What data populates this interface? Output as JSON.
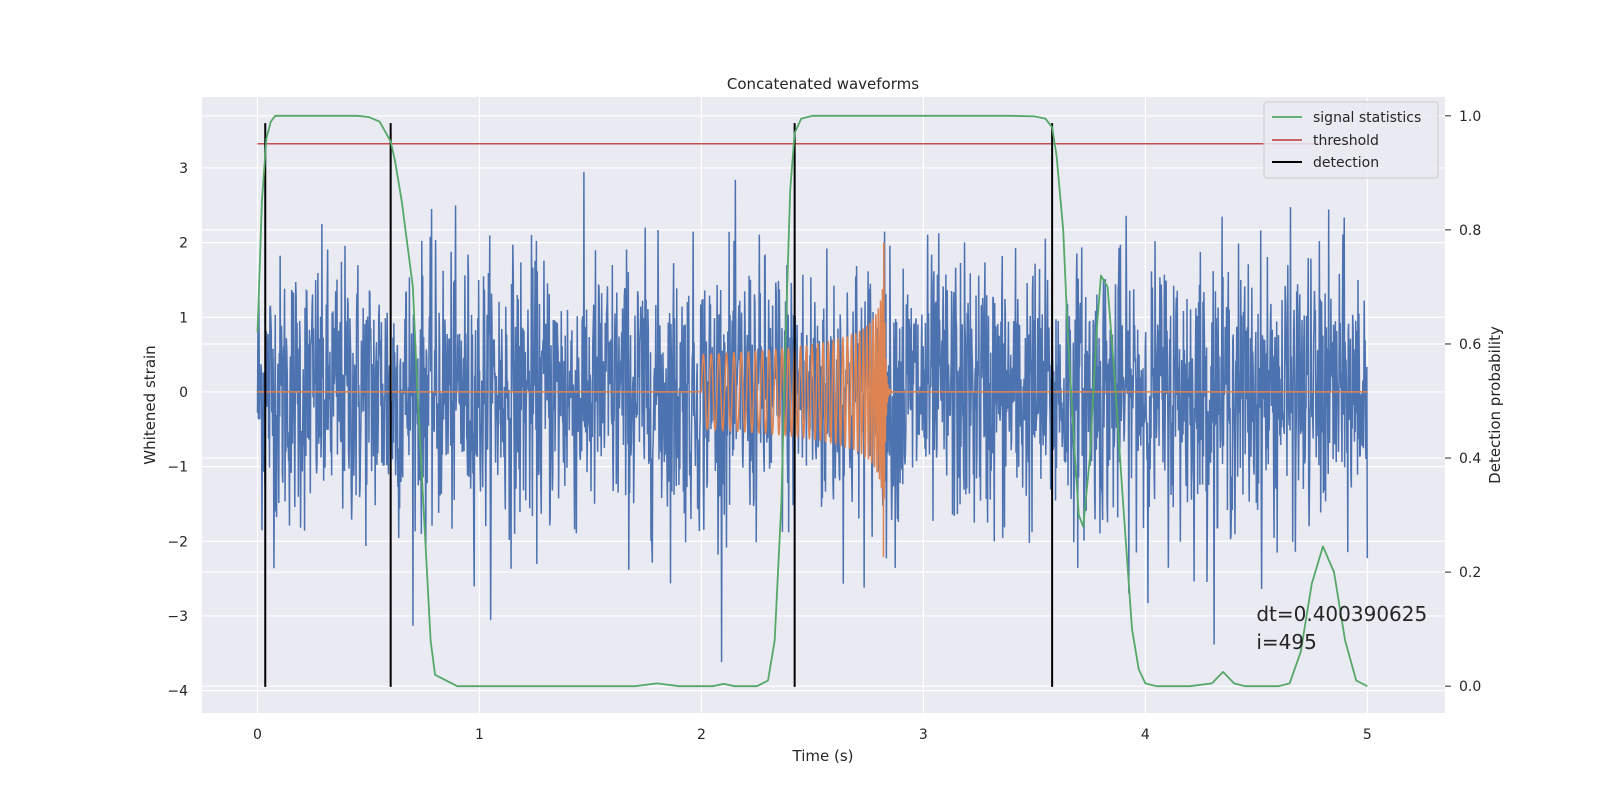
{
  "chart_data": {
    "type": "line",
    "title": "Concatenated waveforms",
    "xlabel": "Time (s)",
    "ylabel": "Whitened strain",
    "y2label": "Detection probability",
    "xlim": [
      -0.25,
      5.35
    ],
    "ylim": [
      -4.3,
      3.95
    ],
    "y2lim": [
      -0.047,
      1.033
    ],
    "grid": true,
    "legend_position": "top-right",
    "x_ticks": [
      0,
      1,
      2,
      3,
      4,
      5
    ],
    "y_ticks": [
      -4,
      -3,
      -2,
      -1,
      0,
      1,
      2,
      3
    ],
    "y2_ticks": [
      0.0,
      0.2,
      0.4,
      0.6,
      0.8,
      1.0
    ],
    "series": [
      {
        "kind": "noise",
        "color": "#4c72b0",
        "x_range": [
          0,
          5
        ],
        "num_points": 2500,
        "typical_amplitude": 0.9,
        "peak_amplitude": 3.6
      },
      {
        "kind": "chirp",
        "color": "#dd8452",
        "x_start": 2.0,
        "x_merger": 2.82,
        "start_amplitude": 0.5,
        "peak_amplitude": 2.0
      },
      {
        "name": "signal statistics",
        "axis": "right",
        "color": "#55a868",
        "x": [
          0,
          0.02,
          0.04,
          0.06,
          0.08,
          0.1,
          0.15,
          0.3,
          0.45,
          0.5,
          0.55,
          0.6,
          0.62,
          0.65,
          0.7,
          0.72,
          0.75,
          0.78,
          0.8,
          0.9,
          1.2,
          1.5,
          1.7,
          1.8,
          1.9,
          2.0,
          2.05,
          2.1,
          2.15,
          2.2,
          2.25,
          2.3,
          2.33,
          2.36,
          2.38,
          2.4,
          2.42,
          2.45,
          2.5,
          2.6,
          3.0,
          3.4,
          3.5,
          3.55,
          3.58,
          3.6,
          3.63,
          3.65,
          3.68,
          3.7,
          3.72,
          3.75,
          3.78,
          3.8,
          3.83,
          3.86,
          3.9,
          3.94,
          3.97,
          4.0,
          4.05,
          4.2,
          4.3,
          4.35,
          4.4,
          4.45,
          4.6,
          4.65,
          4.7,
          4.75,
          4.8,
          4.85,
          4.9,
          4.95,
          5.0
        ],
        "values": [
          0.62,
          0.85,
          0.96,
          0.99,
          1.0,
          1.0,
          1.0,
          1.0,
          1.0,
          0.998,
          0.99,
          0.955,
          0.92,
          0.85,
          0.7,
          0.52,
          0.3,
          0.08,
          0.02,
          0.0,
          0.0,
          0.0,
          0.0,
          0.005,
          0.0,
          0.0,
          0.0,
          0.004,
          0.0,
          0.0,
          0.0,
          0.01,
          0.08,
          0.32,
          0.62,
          0.87,
          0.97,
          0.995,
          1.0,
          1.0,
          1.0,
          1.0,
          0.999,
          0.995,
          0.98,
          0.93,
          0.8,
          0.62,
          0.42,
          0.3,
          0.28,
          0.4,
          0.62,
          0.72,
          0.7,
          0.55,
          0.32,
          0.1,
          0.03,
          0.005,
          0.0,
          0.0,
          0.005,
          0.025,
          0.005,
          0.0,
          0.0,
          0.005,
          0.06,
          0.18,
          0.245,
          0.2,
          0.08,
          0.01,
          0.0
        ]
      },
      {
        "name": "threshold",
        "axis": "right",
        "color": "#c44e52",
        "x": [
          0,
          5
        ],
        "values": [
          0.951,
          0.951
        ]
      },
      {
        "name": "detection",
        "axis": "left",
        "color": "#000000",
        "type": "vlines",
        "x": [
          0.035,
          0.6,
          2.42,
          3.58
        ],
        "y_range": [
          -3.95,
          3.6
        ]
      }
    ],
    "annotations": [
      {
        "text": "dt=0.400390625",
        "x": 4.5,
        "y": -3.07
      },
      {
        "text": " i=495",
        "x": 4.5,
        "y": -3.44
      }
    ]
  }
}
